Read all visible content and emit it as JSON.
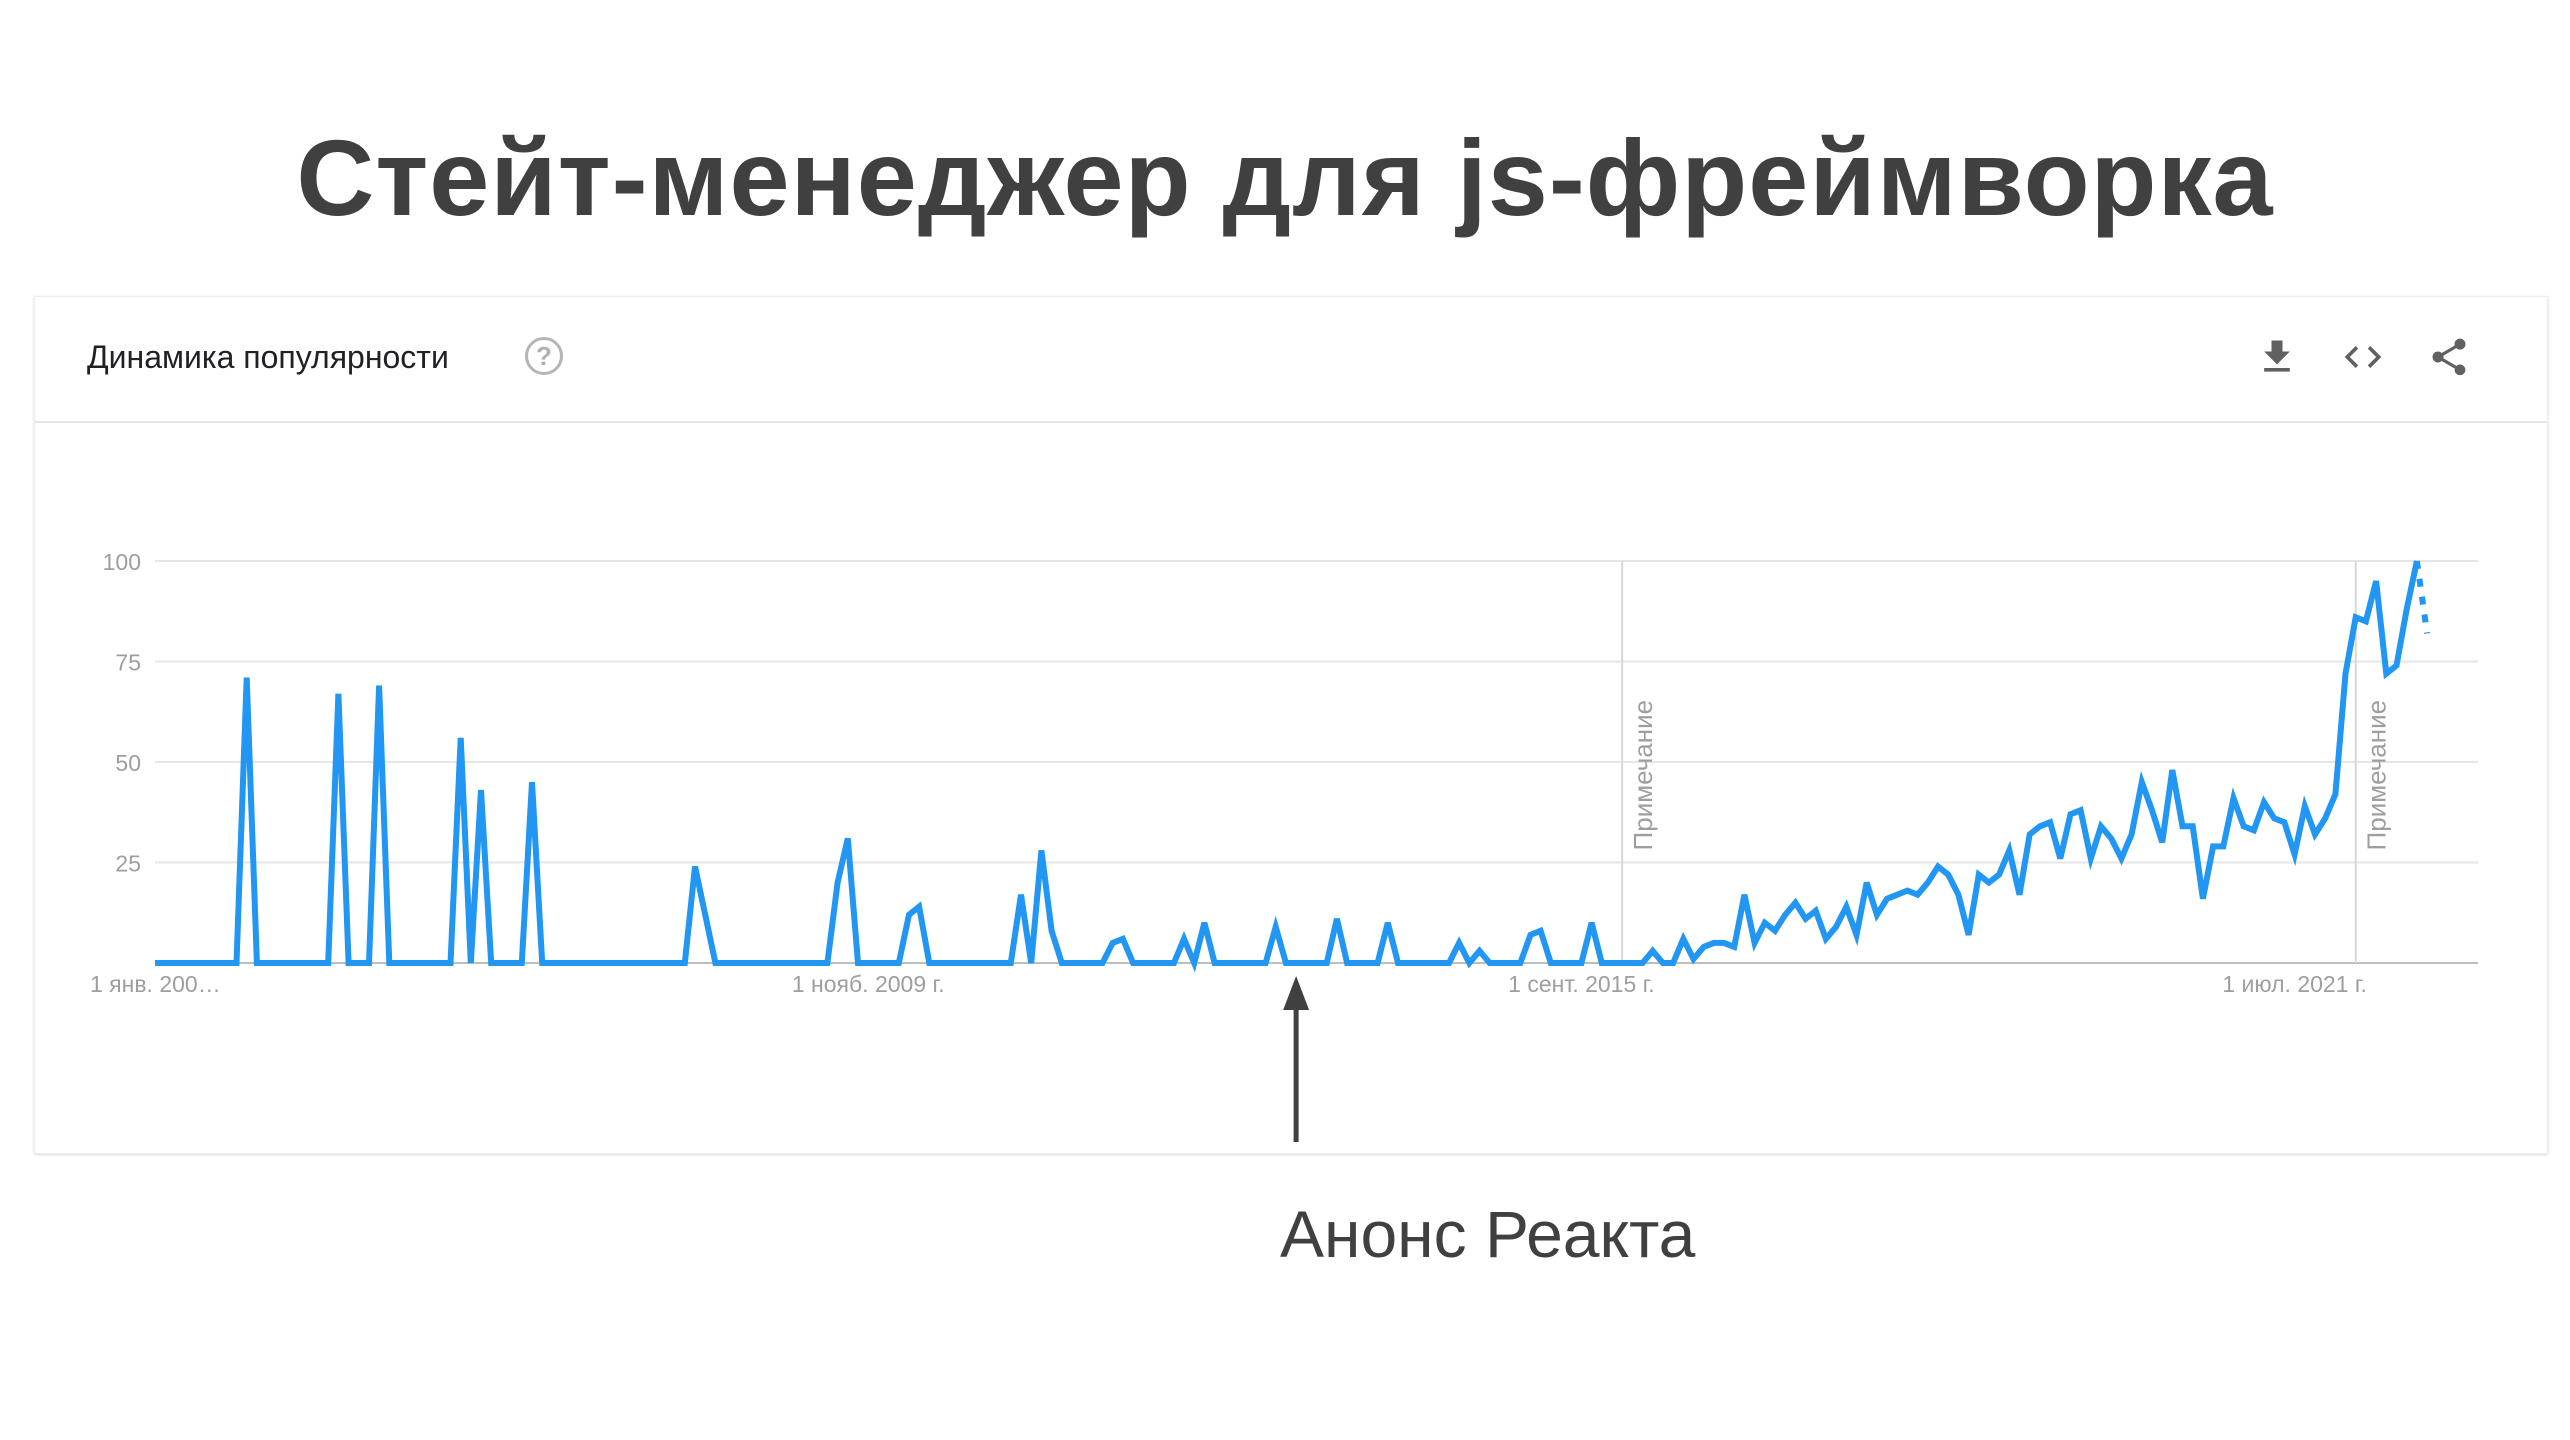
{
  "slide": {
    "title": "Стейт-менеджер для js-фреймворка"
  },
  "card": {
    "title": "Динамика популярности",
    "help_icon": "help-circle-icon",
    "tools": [
      {
        "name": "download-icon"
      },
      {
        "name": "embed-code-icon"
      },
      {
        "name": "share-icon"
      }
    ]
  },
  "annotation": {
    "label": "Анонс Реакта",
    "arrow_icon": "arrow-up-icon",
    "date": "2013-05"
  },
  "colors": {
    "series": "#2196f3",
    "grid": "#e6e6e6",
    "axis": "#bdbdbd",
    "tick_text": "#9e9e9e",
    "text": "#404040"
  },
  "chart_data": {
    "type": "line",
    "title": "",
    "xlabel": "",
    "ylabel": "",
    "ylim": [
      0,
      100
    ],
    "yticks": [
      25,
      50,
      75,
      100
    ],
    "x_tick_labels": [
      {
        "date": "2004-01",
        "label": "1 янв. 200…"
      },
      {
        "date": "2009-11",
        "label": "1 нояб. 2009 г."
      },
      {
        "date": "2015-09",
        "label": "1 сент. 2015 г."
      },
      {
        "date": "2021-07",
        "label": "1 июл. 2021 г."
      }
    ],
    "notes": [
      {
        "date": "2016-01",
        "label": "Примечание"
      },
      {
        "date": "2022-01",
        "label": "Примечание"
      }
    ],
    "grid": true,
    "legend": "none",
    "x_range": [
      "2004-01",
      "2023-01"
    ],
    "series": [
      {
        "points": [
          [
            "2004-01",
            0
          ],
          [
            "2004-09",
            0
          ],
          [
            "2004-10",
            71
          ],
          [
            "2004-11",
            0
          ],
          [
            "2005-06",
            0
          ],
          [
            "2005-07",
            67
          ],
          [
            "2005-08",
            0
          ],
          [
            "2005-10",
            0
          ],
          [
            "2005-11",
            69
          ],
          [
            "2005-12",
            0
          ],
          [
            "2006-06",
            0
          ],
          [
            "2006-07",
            56
          ],
          [
            "2006-08",
            0
          ],
          [
            "2006-09",
            43
          ],
          [
            "2006-10",
            0
          ],
          [
            "2007-01",
            0
          ],
          [
            "2007-02",
            45
          ],
          [
            "2007-03",
            0
          ],
          [
            "2008-05",
            0
          ],
          [
            "2008-06",
            24
          ],
          [
            "2008-07",
            12
          ],
          [
            "2008-08",
            0
          ],
          [
            "2009-07",
            0
          ],
          [
            "2009-08",
            20
          ],
          [
            "2009-09",
            31
          ],
          [
            "2009-10",
            0
          ],
          [
            "2010-02",
            0
          ],
          [
            "2010-03",
            12
          ],
          [
            "2010-04",
            14
          ],
          [
            "2010-05",
            0
          ],
          [
            "2011-01",
            0
          ],
          [
            "2011-02",
            17
          ],
          [
            "2011-03",
            0
          ],
          [
            "2011-04",
            28
          ],
          [
            "2011-05",
            8
          ],
          [
            "2011-06",
            0
          ],
          [
            "2011-10",
            0
          ],
          [
            "2011-11",
            5
          ],
          [
            "2011-12",
            6
          ],
          [
            "2012-01",
            0
          ],
          [
            "2012-05",
            0
          ],
          [
            "2012-06",
            6
          ],
          [
            "2012-07",
            0
          ],
          [
            "2012-08",
            10
          ],
          [
            "2012-09",
            0
          ],
          [
            "2013-02",
            0
          ],
          [
            "2013-03",
            9
          ],
          [
            "2013-04",
            0
          ],
          [
            "2013-08",
            0
          ],
          [
            "2013-09",
            11
          ],
          [
            "2013-10",
            0
          ],
          [
            "2014-01",
            0
          ],
          [
            "2014-02",
            10
          ],
          [
            "2014-03",
            0
          ],
          [
            "2014-08",
            0
          ],
          [
            "2014-09",
            5
          ],
          [
            "2014-10",
            0
          ],
          [
            "2014-11",
            3
          ],
          [
            "2014-12",
            0
          ],
          [
            "2015-03",
            0
          ],
          [
            "2015-04",
            7
          ],
          [
            "2015-05",
            8
          ],
          [
            "2015-06",
            0
          ],
          [
            "2015-09",
            0
          ],
          [
            "2015-10",
            10
          ],
          [
            "2015-11",
            0
          ],
          [
            "2016-01",
            0
          ],
          [
            "2016-03",
            0
          ],
          [
            "2016-04",
            3
          ],
          [
            "2016-05",
            0
          ],
          [
            "2016-06",
            0
          ],
          [
            "2016-07",
            6
          ],
          [
            "2016-08",
            1
          ],
          [
            "2016-09",
            4
          ],
          [
            "2016-10",
            5
          ],
          [
            "2016-11",
            5
          ],
          [
            "2016-12",
            4
          ],
          [
            "2017-01",
            17
          ],
          [
            "2017-02",
            5
          ],
          [
            "2017-03",
            10
          ],
          [
            "2017-04",
            8
          ],
          [
            "2017-05",
            12
          ],
          [
            "2017-06",
            15
          ],
          [
            "2017-07",
            11
          ],
          [
            "2017-08",
            13
          ],
          [
            "2017-09",
            6
          ],
          [
            "2017-10",
            9
          ],
          [
            "2017-11",
            14
          ],
          [
            "2017-12",
            7
          ],
          [
            "2018-01",
            20
          ],
          [
            "2018-02",
            12
          ],
          [
            "2018-03",
            16
          ],
          [
            "2018-04",
            17
          ],
          [
            "2018-05",
            18
          ],
          [
            "2018-06",
            17
          ],
          [
            "2018-07",
            20
          ],
          [
            "2018-08",
            24
          ],
          [
            "2018-09",
            22
          ],
          [
            "2018-10",
            17
          ],
          [
            "2018-11",
            7
          ],
          [
            "2018-12",
            22
          ],
          [
            "2019-01",
            20
          ],
          [
            "2019-02",
            22
          ],
          [
            "2019-03",
            28
          ],
          [
            "2019-04",
            17
          ],
          [
            "2019-05",
            32
          ],
          [
            "2019-06",
            34
          ],
          [
            "2019-07",
            35
          ],
          [
            "2019-08",
            26
          ],
          [
            "2019-09",
            37
          ],
          [
            "2019-10",
            38
          ],
          [
            "2019-11",
            26
          ],
          [
            "2019-12",
            34
          ],
          [
            "2020-01",
            31
          ],
          [
            "2020-02",
            26
          ],
          [
            "2020-03",
            32
          ],
          [
            "2020-04",
            45
          ],
          [
            "2020-05",
            38
          ],
          [
            "2020-06",
            30
          ],
          [
            "2020-07",
            48
          ],
          [
            "2020-08",
            34
          ],
          [
            "2020-09",
            34
          ],
          [
            "2020-10",
            16
          ],
          [
            "2020-11",
            29
          ],
          [
            "2020-12",
            29
          ],
          [
            "2021-01",
            41
          ],
          [
            "2021-02",
            34
          ],
          [
            "2021-03",
            33
          ],
          [
            "2021-04",
            40
          ],
          [
            "2021-05",
            36
          ],
          [
            "2021-06",
            35
          ],
          [
            "2021-07",
            27
          ],
          [
            "2021-08",
            39
          ],
          [
            "2021-09",
            32
          ],
          [
            "2021-10",
            36
          ],
          [
            "2021-11",
            42
          ],
          [
            "2021-12",
            72
          ],
          [
            "2022-01",
            86
          ],
          [
            "2022-02",
            85
          ],
          [
            "2022-03",
            95
          ],
          [
            "2022-04",
            72
          ],
          [
            "2022-05",
            74
          ],
          [
            "2022-06",
            88
          ],
          [
            "2022-07",
            100
          ]
        ]
      },
      {
        "style": "dotted",
        "points": [
          [
            "2022-07",
            100
          ],
          [
            "2022-08",
            82
          ]
        ]
      }
    ]
  }
}
